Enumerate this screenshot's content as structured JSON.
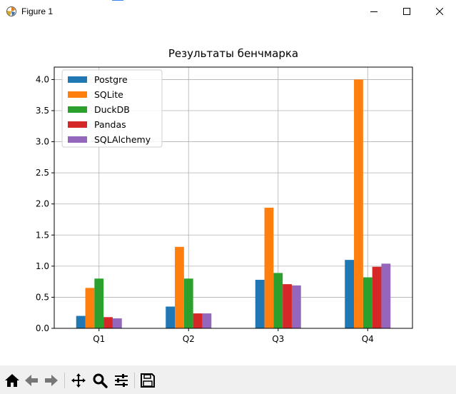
{
  "window": {
    "title": "Figure 1",
    "controls": [
      "minimize",
      "maximize",
      "close"
    ]
  },
  "toolbar": {
    "buttons": [
      "home-icon",
      "back-arrow-icon",
      "forward-arrow-icon",
      "pan-icon",
      "zoom-icon",
      "configure-subplots-icon",
      "save-icon"
    ]
  },
  "colors": {
    "Postgre": "#1f77b4",
    "SQLite": "#ff7f0e",
    "DuckDB": "#2ca02c",
    "Pandas": "#d62728",
    "SQLAlchemy": "#9467bd"
  },
  "chart_data": {
    "type": "bar",
    "title": "Результаты бенчмарка",
    "xlabel": "",
    "ylabel": "",
    "categories": [
      "Q1",
      "Q2",
      "Q3",
      "Q4"
    ],
    "ylim": [
      0,
      4.2
    ],
    "yticks": [
      "0.0",
      "0.5",
      "1.0",
      "1.5",
      "2.0",
      "2.5",
      "3.0",
      "3.5",
      "4.0"
    ],
    "grid": true,
    "legend_position": "top-left",
    "series": [
      {
        "name": "Postgre",
        "values": [
          0.2,
          0.35,
          0.78,
          1.1
        ]
      },
      {
        "name": "SQLite",
        "values": [
          0.65,
          1.31,
          1.94,
          4.0
        ]
      },
      {
        "name": "DuckDB",
        "values": [
          0.8,
          0.8,
          0.89,
          0.82
        ]
      },
      {
        "name": "Pandas",
        "values": [
          0.18,
          0.24,
          0.71,
          0.99
        ]
      },
      {
        "name": "SQLAlchemy",
        "values": [
          0.16,
          0.24,
          0.69,
          1.04
        ]
      }
    ]
  }
}
